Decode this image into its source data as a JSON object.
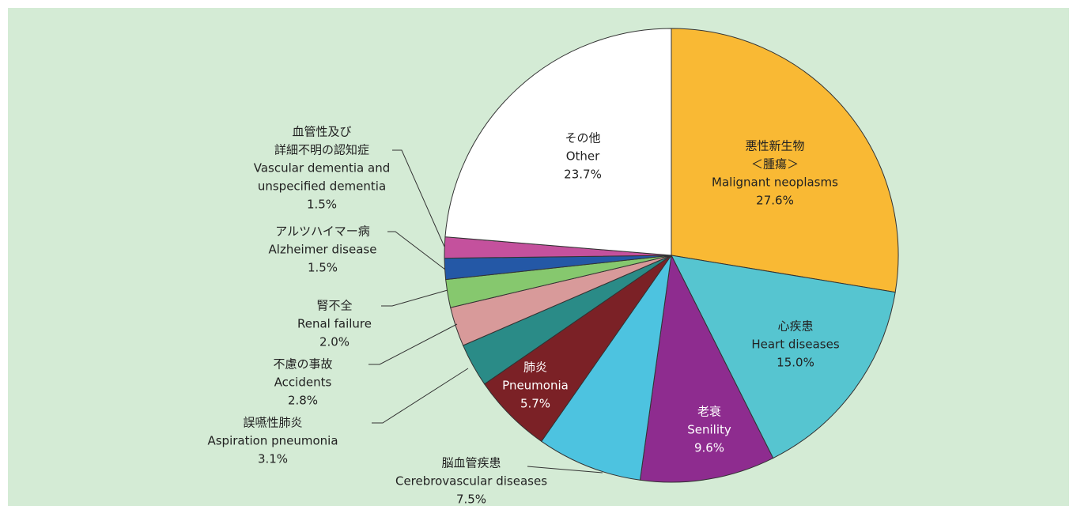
{
  "chart_data": {
    "type": "pie",
    "labels_ja": [
      [
        "悪性新生物",
        "＜腫瘍＞"
      ],
      [
        "心疾患"
      ],
      [
        "老衰"
      ],
      [
        "脳血管疾患"
      ],
      [
        "肺炎"
      ],
      [
        "誤嚥性肺炎"
      ],
      [
        "不慮の事故"
      ],
      [
        "腎不全"
      ],
      [
        "アルツハイマー病"
      ],
      [
        "血管性及び",
        "詳細不明の認知症"
      ],
      [
        "その他"
      ]
    ],
    "categories": [
      [
        "Malignant neoplasms"
      ],
      [
        "Heart diseases"
      ],
      [
        "Senility"
      ],
      [
        "Cerebrovascular diseases"
      ],
      [
        "Pneumonia"
      ],
      [
        "Aspiration pneumonia"
      ],
      [
        "Accidents"
      ],
      [
        "Renal failure"
      ],
      [
        "Alzheimer disease"
      ],
      [
        "Vascular dementia and",
        "unspecified dementia"
      ],
      [
        "Other"
      ]
    ],
    "values": [
      27.6,
      15.0,
      9.6,
      7.5,
      5.7,
      3.1,
      2.8,
      2.0,
      1.5,
      1.5,
      23.7
    ],
    "value_labels": [
      "27.6%",
      "15.0%",
      "9.6%",
      "7.5%",
      "5.7%",
      "3.1%",
      "2.8%",
      "2.0%",
      "1.5%",
      "1.5%",
      "23.7%"
    ],
    "colors": [
      "#f9b934",
      "#56c5d0",
      "#8e2c8f",
      "#4dc3e0",
      "#7b2126",
      "#2a8b87",
      "#d89a9a",
      "#86c86e",
      "#2458a6",
      "#c4519d",
      "#ffffff"
    ]
  }
}
